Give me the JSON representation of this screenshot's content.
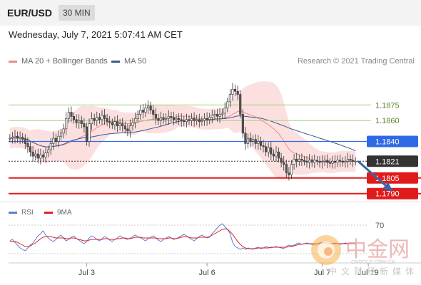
{
  "chart_data": {
    "type": "candlestick",
    "title": "EUR/USD",
    "timeframe": "30 MIN",
    "timestamp": "Wednesday, July 7, 2021 5:07:41 AM CET",
    "credit": "Research © 2021 Trading Central",
    "legend": [
      {
        "label": "MA 20 + Bollinger Bands",
        "color": "#f08a8a"
      },
      {
        "label": "MA 50",
        "color": "#3b5a8c"
      }
    ],
    "ylim": [
      1.1783,
      1.191
    ],
    "x_ticks": [
      {
        "label": "Jul 3",
        "index": 30
      },
      {
        "label": "Jul 6",
        "index": 77
      },
      {
        "label": "Jul 7",
        "index": 122
      },
      {
        "label": "Jul 19",
        "index": 140
      }
    ],
    "levels": [
      {
        "value": 1.1875,
        "label": "1.1875",
        "kind": "resistance",
        "color": "#a6cf7c"
      },
      {
        "value": 1.186,
        "label": "1.1860",
        "kind": "resistance",
        "color": "#a6cf7c"
      },
      {
        "value": 1.184,
        "label": "1.1840",
        "kind": "pivot",
        "color": "#2e6ae6"
      },
      {
        "value": 1.1821,
        "label": "1.1821",
        "kind": "last",
        "color": "#333333"
      },
      {
        "value": 1.1805,
        "label": "1.1805",
        "kind": "support",
        "color": "#e01b1b"
      },
      {
        "value": 1.179,
        "label": "1.1790",
        "kind": "support",
        "color": "#e01b1b"
      }
    ],
    "forecast_arrow": {
      "from_index": 136,
      "from": 1.1821,
      "to_index": 149,
      "to": 1.1793,
      "color": "#3a65a8"
    },
    "closes": [
      1.1843,
      1.1844,
      1.1845,
      1.1843,
      1.1844,
      1.1842,
      1.1838,
      1.1835,
      1.183,
      1.1826,
      1.1828,
      1.1824,
      1.1827,
      1.1825,
      1.1829,
      1.1832,
      1.1838,
      1.1843,
      1.184,
      1.1845,
      1.1848,
      1.1852,
      1.1862,
      1.1868,
      1.1864,
      1.1861,
      1.1858,
      1.186,
      1.1857,
      1.1854,
      1.184,
      1.1857,
      1.1862,
      1.186,
      1.1863,
      1.1861,
      1.1865,
      1.1862,
      1.1859,
      1.1858,
      1.1856,
      1.1859,
      1.1855,
      1.1857,
      1.1855,
      1.1852,
      1.185,
      1.1855,
      1.1858,
      1.1862,
      1.1866,
      1.187,
      1.1868,
      1.1872,
      1.1874,
      1.187,
      1.1866,
      1.1862,
      1.186,
      1.1863,
      1.1861,
      1.1862,
      1.1864,
      1.1863,
      1.1861,
      1.1862,
      1.1861,
      1.186,
      1.1859,
      1.1861,
      1.186,
      1.1862,
      1.186,
      1.1861,
      1.1859,
      1.186,
      1.1862,
      1.1861,
      1.1863,
      1.1865,
      1.1866,
      1.1864,
      1.1866,
      1.1867,
      1.1872,
      1.1878,
      1.1885,
      1.189,
      1.1888,
      1.1885,
      1.1866,
      1.1848,
      1.1838,
      1.1843,
      1.184,
      1.1842,
      1.1838,
      1.184,
      1.1836,
      1.1835,
      1.183,
      1.1834,
      1.1828,
      1.1826,
      1.183,
      1.1824,
      1.182,
      1.1818,
      1.181,
      1.1808,
      1.1818,
      1.1823,
      1.1821,
      1.1823,
      1.1822,
      1.1821,
      1.182,
      1.1822,
      1.182,
      1.1822,
      1.1821,
      1.182,
      1.1821,
      1.1822,
      1.182,
      1.1819,
      1.1821,
      1.182,
      1.1822,
      1.1821,
      1.182,
      1.1821,
      1.1823,
      1.1822,
      1.1821,
      1.1821
    ],
    "rsi": {
      "legend": [
        {
          "label": "RSI",
          "color": "#5a80d8"
        },
        {
          "label": "9MA",
          "color": "#e02020"
        }
      ],
      "levels": [
        {
          "value": 70,
          "label": "70"
        },
        {
          "value": 30,
          "label": ""
        }
      ],
      "ylim": [
        20,
        80
      ],
      "values": [
        48,
        50,
        46,
        42,
        38,
        36,
        34,
        38,
        42,
        45,
        50,
        55,
        58,
        62,
        56,
        52,
        49,
        47,
        50,
        54,
        56,
        52,
        48,
        50,
        53,
        55,
        51,
        49,
        46,
        44,
        47,
        52,
        55,
        53,
        50,
        48,
        51,
        54,
        52,
        49,
        47,
        50,
        52,
        55,
        53,
        51,
        50,
        52,
        54,
        56,
        54,
        52,
        50,
        48,
        51,
        53,
        55,
        52,
        49,
        47,
        50,
        52,
        54,
        52,
        50,
        51,
        53,
        55,
        57,
        55,
        52,
        50,
        48,
        51,
        54,
        56,
        54,
        52,
        53,
        58,
        62,
        66,
        70,
        72,
        68,
        64,
        58,
        46,
        40,
        38,
        36,
        38,
        36,
        38,
        37,
        36,
        38,
        39,
        37,
        38,
        40,
        39,
        38,
        39,
        40,
        39,
        38,
        37,
        40,
        42,
        41,
        42,
        44,
        45,
        43,
        44,
        45,
        44,
        43,
        42,
        44,
        45,
        46,
        45,
        44,
        43,
        44,
        45,
        44,
        43,
        44,
        45,
        44,
        45,
        44,
        45
      ],
      "ma9": [
        47,
        47,
        47,
        46,
        44,
        42,
        40,
        40,
        41,
        43,
        45,
        48,
        51,
        53,
        54,
        54,
        54,
        53,
        52,
        52,
        52,
        52,
        51,
        51,
        52,
        52,
        51,
        50,
        49,
        48,
        48,
        49,
        50,
        50,
        50,
        50,
        50,
        51,
        51,
        50,
        50,
        50,
        51,
        51,
        52,
        52,
        51,
        51,
        52,
        53,
        53,
        53,
        52,
        52,
        52,
        52,
        52,
        52,
        51,
        51,
        51,
        51,
        52,
        52,
        51,
        51,
        52,
        53,
        54,
        54,
        53,
        52,
        52,
        52,
        53,
        53,
        53,
        53,
        54,
        56,
        58,
        60,
        62,
        64,
        65,
        64,
        61,
        57,
        52,
        47,
        43,
        40,
        38,
        37,
        37,
        37,
        37,
        38,
        38,
        38,
        38,
        38,
        39,
        39,
        39,
        39,
        39,
        39,
        39,
        40,
        40,
        41,
        42,
        43,
        43,
        44,
        44,
        44,
        44,
        44,
        44,
        44,
        45,
        45,
        45,
        45,
        44,
        44,
        44,
        44,
        44,
        44,
        44,
        44,
        44,
        44
      ]
    }
  }
}
